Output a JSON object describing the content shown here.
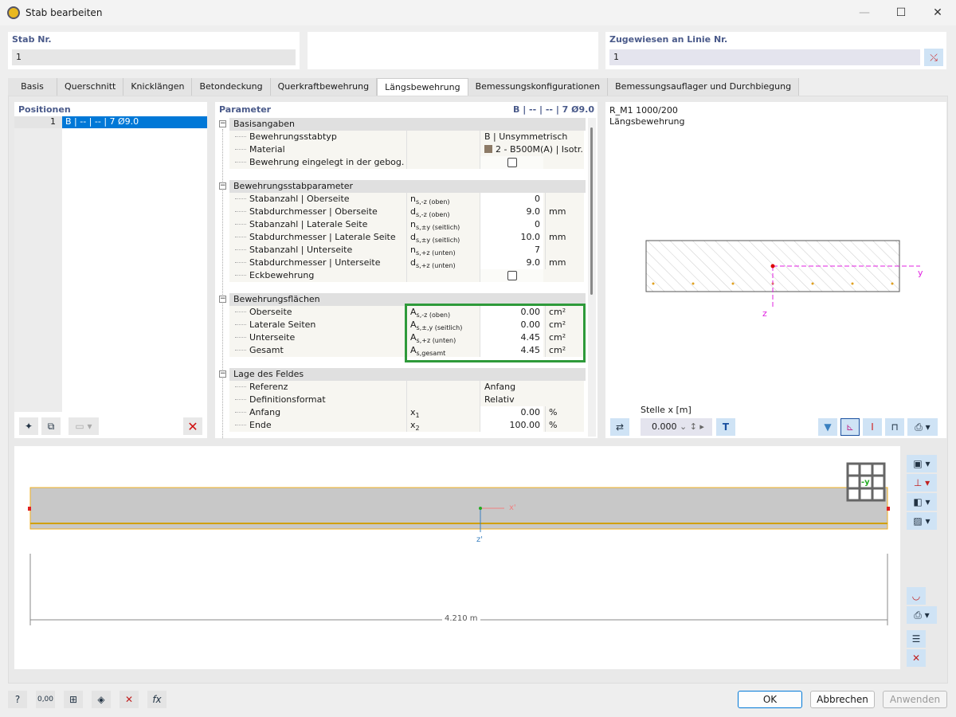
{
  "window": {
    "title": "Stab bearbeiten",
    "minimize": "—",
    "maximize": "☐",
    "close": "✕"
  },
  "header": {
    "stab_label": "Stab Nr.",
    "stab_value": "1",
    "linie_label": "Zugewiesen an Linie Nr.",
    "linie_value": "1"
  },
  "tabs": [
    "Basis",
    "Querschnitt",
    "Knicklängen",
    "Betondeckung",
    "Querkraftbewehrung",
    "Längsbewehrung",
    "Bemessungskonfigurationen",
    "Bemessungsauflager und Durchbiegung"
  ],
  "active_tab": "Längsbewehrung",
  "positions": {
    "title": "Positionen",
    "items": [
      {
        "nr": "1",
        "label": "B | -- | -- | 7 Ø9.0"
      }
    ]
  },
  "parameter": {
    "title": "Parameter",
    "summary": "B | -- | -- | 7 Ø9.0",
    "groups": [
      {
        "title": "Basisangaben",
        "rows": [
          {
            "name": "Bewehrungsstabtyp",
            "sym": "",
            "sub": "",
            "value": "B | Unsymmetrisch",
            "unit": "",
            "align": "left"
          },
          {
            "name": "Material",
            "sym": "",
            "sub": "",
            "value": "2 - B500M(A) | Isotr...",
            "unit": "",
            "align": "left",
            "swatch": "#8c7a66"
          },
          {
            "name": "Bewehrung eingelegt in der gebog...",
            "sym": "",
            "sub": "",
            "checkbox": true,
            "checked": false
          }
        ]
      },
      {
        "title": "Bewehrungsstabparameter",
        "rows": [
          {
            "name": "Stabanzahl | Oberseite",
            "sym": "n",
            "sub": "s,-z (oben)",
            "value": "0",
            "unit": ""
          },
          {
            "name": "Stabdurchmesser | Oberseite",
            "sym": "d",
            "sub": "s,-z (oben)",
            "value": "9.0",
            "unit": "mm"
          },
          {
            "name": "Stabanzahl | Laterale Seite",
            "sym": "n",
            "sub": "s,±y (seitlich)",
            "value": "0",
            "unit": ""
          },
          {
            "name": "Stabdurchmesser | Laterale Seite",
            "sym": "d",
            "sub": "s,±y (seitlich)",
            "value": "10.0",
            "unit": "mm"
          },
          {
            "name": "Stabanzahl | Unterseite",
            "sym": "n",
            "sub": "s,+z (unten)",
            "value": "7",
            "unit": ""
          },
          {
            "name": "Stabdurchmesser | Unterseite",
            "sym": "d",
            "sub": "s,+z (unten)",
            "value": "9.0",
            "unit": "mm"
          },
          {
            "name": "Eckbewehrung",
            "sym": "",
            "sub": "",
            "checkbox": true,
            "checked": false
          }
        ]
      },
      {
        "title": "Bewehrungsflächen",
        "highlight": "#2e9a3a",
        "rows": [
          {
            "name": "Oberseite",
            "sym": "A",
            "sub": "s,-z (oben)",
            "value": "0.00",
            "unit": "cm²"
          },
          {
            "name": "Laterale Seiten",
            "sym": "A",
            "sub": "s,±,y (seitlich)",
            "value": "0.00",
            "unit": "cm²"
          },
          {
            "name": "Unterseite",
            "sym": "A",
            "sub": "s,+z (unten)",
            "value": "4.45",
            "unit": "cm²"
          },
          {
            "name": "Gesamt",
            "sym": "A",
            "sub": "s,gesamt",
            "value": "4.45",
            "unit": "cm²"
          }
        ]
      },
      {
        "title": "Lage des Feldes",
        "rows": [
          {
            "name": "Referenz",
            "sym": "",
            "sub": "",
            "value": "Anfang",
            "unit": "",
            "align": "left"
          },
          {
            "name": "Definitionsformat",
            "sym": "",
            "sub": "",
            "value": "Relativ",
            "unit": "",
            "align": "left"
          },
          {
            "name": "Anfang",
            "sym": "x",
            "sub": "1",
            "value": "0.00",
            "unit": "%"
          },
          {
            "name": "Ende",
            "sym": "x",
            "sub": "2",
            "value": "100.00",
            "unit": "%"
          }
        ]
      }
    ]
  },
  "preview": {
    "section_name": "R_M1 1000/200",
    "subtitle": "Längsbewehrung",
    "axis_y": "y",
    "axis_z": "z",
    "stelle_label": "Stelle x [m]",
    "stelle_value": "0.000"
  },
  "view3d": {
    "dimension": "4.210 m",
    "axis_x": "x'",
    "axis_z": "z'",
    "cube_label": "-y"
  },
  "footer": {
    "ok": "OK",
    "cancel": "Abbrechen",
    "apply": "Anwenden"
  },
  "colors": {
    "accent": "#0078d7",
    "highlight": "#2e9a3a",
    "axis": "#e020e0"
  }
}
